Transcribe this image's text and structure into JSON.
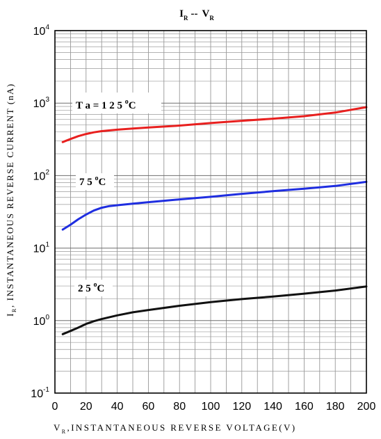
{
  "chart_data": {
    "type": "line",
    "title": {
      "main": "I",
      "sub1": "R",
      "sep": "--",
      "main2": "V",
      "sub2": "R"
    },
    "xlabel": {
      "prefix": "V",
      "sub": "R",
      "text": ",INSTANTANEOUS REVERSE VOLTAGE(V)"
    },
    "ylabel": {
      "prefix": "I",
      "sub": "R",
      "text": ", INSTANTANEOUS REVERSE CURRENT (nA)"
    },
    "xlim": [
      0,
      200
    ],
    "ylim": [
      0.1,
      10000
    ],
    "y_scale": "log",
    "grid": true,
    "x_ticks": [
      "0",
      "20",
      "40",
      "60",
      "80",
      "100",
      "120",
      "140",
      "160",
      "180",
      "200"
    ],
    "y_ticks": [
      {
        "base": "10",
        "exp": "-1"
      },
      {
        "base": "10",
        "exp": "0"
      },
      {
        "base": "10",
        "exp": "1"
      },
      {
        "base": "10",
        "exp": "2"
      },
      {
        "base": "10",
        "exp": "3"
      },
      {
        "base": "10",
        "exp": "4"
      }
    ],
    "series": [
      {
        "name": "T a = 1 2 5 °C",
        "label": {
          "text": "T a = 1 2 5 ",
          "deg": "o",
          "unit": "C"
        },
        "color": "#e8201f",
        "x": [
          5,
          10,
          15,
          20,
          25,
          30,
          40,
          50,
          60,
          80,
          100,
          120,
          140,
          160,
          180,
          200
        ],
        "y": [
          290,
          320,
          350,
          375,
          395,
          410,
          430,
          445,
          460,
          490,
          530,
          570,
          610,
          660,
          740,
          880
        ]
      },
      {
        "name": "7 5 °C",
        "label": {
          "text": "7 5 ",
          "deg": "o",
          "unit": "C"
        },
        "color": "#1f2ee0",
        "x": [
          5,
          10,
          15,
          20,
          25,
          30,
          35,
          40,
          50,
          60,
          80,
          100,
          120,
          140,
          160,
          180,
          200
        ],
        "y": [
          18,
          21,
          25,
          29,
          33,
          36,
          38,
          39,
          41,
          43,
          47,
          51,
          56,
          61,
          66,
          72,
          82
        ]
      },
      {
        "name": "2 5 °C",
        "label": {
          "text": "2 5 ",
          "deg": "o",
          "unit": "C"
        },
        "color": "#111111",
        "x": [
          5,
          10,
          15,
          20,
          25,
          30,
          40,
          50,
          60,
          80,
          100,
          120,
          140,
          160,
          180,
          200
        ],
        "y": [
          0.65,
          0.72,
          0.8,
          0.9,
          0.98,
          1.05,
          1.18,
          1.3,
          1.4,
          1.6,
          1.8,
          1.98,
          2.15,
          2.35,
          2.6,
          2.95
        ]
      }
    ]
  }
}
